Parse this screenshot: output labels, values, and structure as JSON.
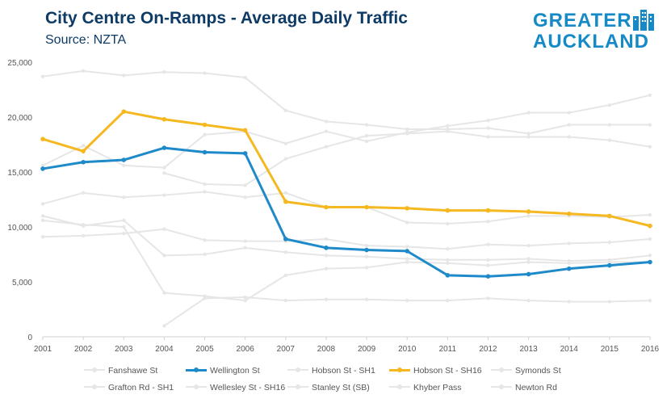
{
  "title": "City Centre On-Ramps - Average Daily Traffic",
  "subtitle": "Source: NZTA",
  "brand": {
    "line1": "GREATER",
    "line2": "AUCKLAND",
    "icon": "city-skyline-icon"
  },
  "colors": {
    "highlight_blue": "#1f8ac9",
    "highlight_yellow": "#f5b820",
    "background_series": "#e6e6e6",
    "axis_text": "#555555"
  },
  "chart_data": {
    "type": "line",
    "x": [
      2001,
      2002,
      2003,
      2004,
      2005,
      2006,
      2007,
      2008,
      2009,
      2010,
      2011,
      2012,
      2013,
      2014,
      2015,
      2016
    ],
    "ylim": [
      0,
      25000
    ],
    "yticks": [
      "0",
      "5,000",
      "10,000",
      "15,000",
      "20,000",
      "25,000"
    ],
    "ytick_values": [
      0,
      5000,
      10000,
      15000,
      20000,
      25000
    ],
    "xticks": [
      "2001",
      "2002",
      "2003",
      "2004",
      "2005",
      "2006",
      "2007",
      "2008",
      "2009",
      "2010",
      "2011",
      "2012",
      "2013",
      "2014",
      "2015",
      "2016"
    ],
    "grid": false,
    "legend_position": "bottom",
    "series": [
      {
        "name": "Fanshawe St",
        "color": "#e6e6e6",
        "highlight": false,
        "values": [
          23700,
          24200,
          23800,
          24100,
          24000,
          23600,
          20600,
          19600,
          19300,
          18900,
          18900,
          19000,
          18500,
          19300,
          19300,
          19300
        ]
      },
      {
        "name": "Wellington St",
        "color": "#1f8ac9",
        "highlight": true,
        "values": [
          15300,
          15900,
          16100,
          17200,
          16800,
          16700,
          8900,
          8100,
          7900,
          7800,
          5600,
          5500,
          5700,
          6200,
          6500,
          6800
        ]
      },
      {
        "name": "Hobson St - SH1",
        "color": "#e6e6e6",
        "highlight": false,
        "values": [
          15600,
          17400,
          15600,
          15400,
          18400,
          18700,
          17600,
          18700,
          17800,
          18600,
          19200,
          19700,
          20400,
          20400,
          21100,
          22000
        ]
      },
      {
        "name": "Hobson St - SH16",
        "color": "#f5b820",
        "highlight": true,
        "values": [
          18000,
          16900,
          20500,
          19800,
          19300,
          18800,
          12300,
          11800,
          11800,
          11700,
          11500,
          11500,
          11400,
          11200,
          11000,
          10100
        ]
      },
      {
        "name": "Symonds St",
        "color": "#e6e6e6",
        "highlight": false,
        "values": [
          12100,
          13100,
          12700,
          12900,
          13200,
          12700,
          13100,
          11800,
          11800,
          10400,
          10300,
          10500,
          11000,
          11000,
          10900,
          11100
        ]
      },
      {
        "name": "Grafton Rd - SH1",
        "color": "#e6e6e6",
        "highlight": false,
        "values": [
          11000,
          10100,
          10600,
          7400,
          7500,
          8100,
          7700,
          7400,
          7300,
          7100,
          7000,
          7000,
          7100,
          6900,
          7000,
          7400
        ]
      },
      {
        "name": "Wellesley St - SH16",
        "color": "#e6e6e6",
        "highlight": false,
        "values": [
          10600,
          10200,
          10000,
          4000,
          3700,
          3300,
          5600,
          6200,
          6300,
          6800,
          6700,
          6500,
          6800,
          6700,
          6800,
          6800
        ]
      },
      {
        "name": "Stanley St (SB)",
        "color": "#e6e6e6",
        "highlight": false,
        "values": [
          9100,
          9200,
          9400,
          9800,
          8800,
          8700,
          8700,
          8900,
          8300,
          8200,
          8000,
          8400,
          8300,
          8500,
          8600,
          8900
        ]
      },
      {
        "name": "Khyber Pass",
        "color": "#e6e6e6",
        "highlight": false,
        "values": [
          null,
          null,
          null,
          1000,
          3500,
          3600,
          3300,
          3400,
          3400,
          3300,
          3300,
          3500,
          3300,
          3200,
          3200,
          3300
        ]
      },
      {
        "name": "Newton Rd",
        "color": "#e6e6e6",
        "highlight": false,
        "values": [
          null,
          null,
          null,
          14900,
          13900,
          13800,
          16200,
          17300,
          18300,
          18500,
          18700,
          18200,
          18200,
          18200,
          17900,
          17300
        ]
      }
    ]
  }
}
